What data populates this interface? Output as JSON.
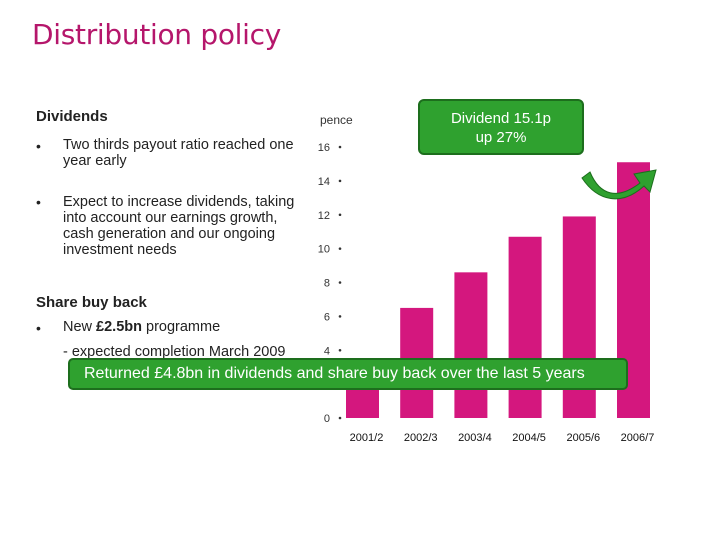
{
  "title": "Distribution policy",
  "dividends": {
    "heading": "Dividends",
    "bullet_1": "Two thirds payout ratio reached one year early",
    "bullet_2": "Expect to increase dividends, taking into account our earnings growth, cash generation and our ongoing investment needs"
  },
  "buyback": {
    "heading": "Share buy back",
    "bullet_1_pre": "New ",
    "bullet_1_bold": "£2.5bn",
    "bullet_1_post": " programme",
    "sub": "- expected completion March 2009"
  },
  "bullet_char": "•",
  "callout": {
    "line1": "Dividend 15.1p",
    "line2": "up 27%"
  },
  "banner": {
    "text": "Returned £4.8bn in dividends and share buy back over the last 5 years"
  },
  "colors": {
    "title": "#b5166b",
    "bar": "#d4177e",
    "callout": "#2fa12f",
    "arrow": "#2fa12f"
  },
  "chart_data": {
    "type": "bar",
    "ylabel": "pence",
    "ylim": [
      0,
      16
    ],
    "yticks": [
      0,
      4,
      6,
      8,
      10,
      12,
      14,
      16
    ],
    "categories": [
      "2001/2",
      "2002/3",
      "2003/4",
      "2004/5",
      "2005/6",
      "2006/7"
    ],
    "values": [
      2.3,
      6.5,
      8.6,
      10.7,
      11.9,
      15.1
    ]
  }
}
